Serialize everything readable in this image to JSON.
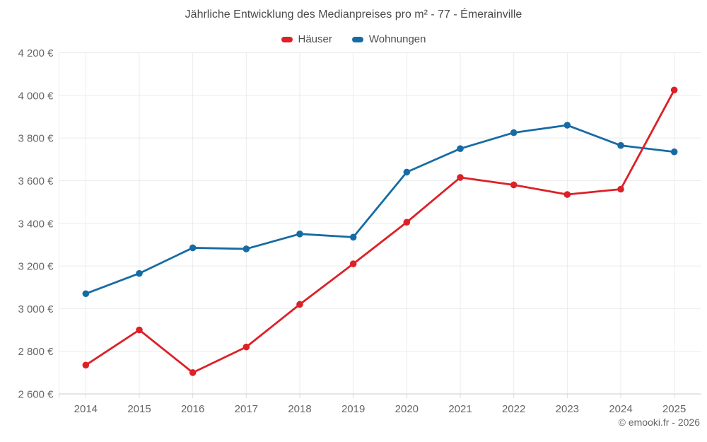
{
  "header": {
    "title": "Jährliche Entwicklung des Medianpreises pro m² - 77 - Émerainville"
  },
  "chart_data": {
    "type": "line",
    "title": "Jährliche Entwicklung des Medianpreises pro m² - 77 - Émerainville",
    "categories": [
      "2014",
      "2015",
      "2016",
      "2017",
      "2018",
      "2019",
      "2020",
      "2021",
      "2022",
      "2023",
      "2024",
      "2025"
    ],
    "series": [
      {
        "name": "Häuser",
        "color": "#dc2127",
        "values": [
          2735,
          2900,
          2700,
          2820,
          3020,
          3210,
          3405,
          3615,
          3580,
          3535,
          3560,
          4025
        ]
      },
      {
        "name": "Wohnungen",
        "color": "#176ba4",
        "values": [
          3070,
          3165,
          3285,
          3280,
          3350,
          3335,
          3640,
          3750,
          3825,
          3860,
          3765,
          3735
        ]
      }
    ],
    "ylim": [
      2600,
      4200
    ],
    "y_ticks": [
      2600,
      2800,
      3000,
      3200,
      3400,
      3600,
      3800,
      4000,
      4200
    ],
    "y_tick_labels": [
      "2 600 €",
      "2 800 €",
      "3 000 €",
      "3 200 €",
      "3 400 €",
      "3 600 €",
      "3 800 €",
      "4 000 €",
      "4 200 €"
    ],
    "currency_suffix": "€",
    "grid": true,
    "legend_position": "top",
    "xlabel": "",
    "ylabel": ""
  },
  "footer": {
    "copyright": "© emooki.fr - 2026"
  }
}
